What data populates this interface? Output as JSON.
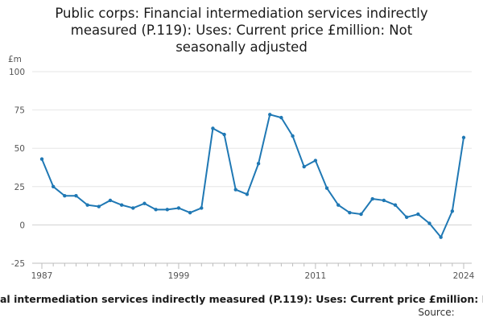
{
  "chart_data": {
    "type": "line",
    "title_lines": [
      "Public corps: Financial intermediation services indirectly",
      "measured (P.119): Uses: Current price £million: Not",
      "seasonally adjusted"
    ],
    "ylabel": "£m",
    "ylim": [
      -25,
      100
    ],
    "yticks": [
      100,
      75,
      50,
      25,
      0,
      -25
    ],
    "xlim": [
      1987,
      2024
    ],
    "xticks": [
      1987,
      1999,
      2011,
      2024
    ],
    "grid": true,
    "series": [
      {
        "name": "Public corps: Financial intermediation services indirectly measured (P.119): Uses: Current price £million: Not seasonally adjusted",
        "color": "#1f78b4",
        "x": [
          1987,
          1988,
          1989,
          1990,
          1991,
          1992,
          1993,
          1994,
          1995,
          1996,
          1997,
          1998,
          1999,
          2000,
          2001,
          2002,
          2003,
          2004,
          2005,
          2006,
          2007,
          2008,
          2009,
          2010,
          2011,
          2012,
          2013,
          2014,
          2015,
          2016,
          2017,
          2018,
          2019,
          2020,
          2021,
          2022,
          2023,
          2024
        ],
        "values": [
          43,
          25,
          19,
          19,
          13,
          12,
          16,
          13,
          11,
          14,
          10,
          10,
          11,
          8,
          11,
          63,
          59,
          23,
          20,
          40,
          72,
          70,
          58,
          38,
          42,
          24,
          13,
          8,
          7,
          17,
          16,
          13,
          5,
          7,
          1,
          -8,
          9,
          57
        ]
      }
    ],
    "legend_text": "al intermediation services indirectly measured (P.119): Uses: Current price £million: N",
    "source_text": "Source:"
  }
}
